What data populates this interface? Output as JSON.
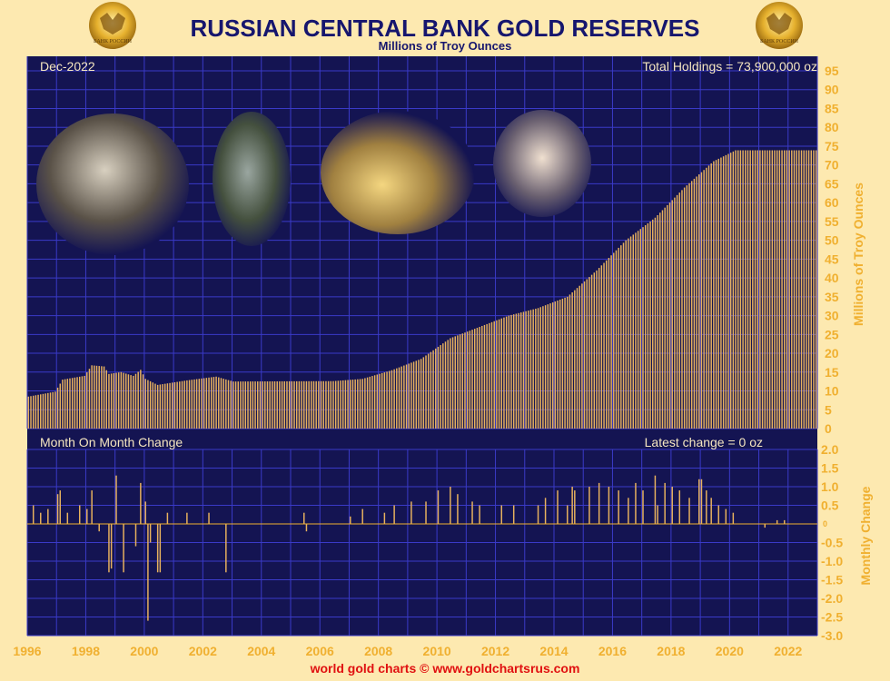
{
  "header": {
    "title": "RUSSIAN CENTRAL BANK GOLD RESERVES",
    "subtitle": "Millions of Troy Ounces",
    "emblem_text": "БАНК РОССИИ"
  },
  "footer": {
    "credit": "world gold charts © www.goldchartsrus.com"
  },
  "colors": {
    "plot_bg": "#141452",
    "grid": "#3a3ac8",
    "bar": "#e8b25e",
    "axis_text": "#f0b030",
    "title_text": "#16166e",
    "footer_text": "#e01010",
    "header_bg": "#fde9b0"
  },
  "photos": [
    "Putin and officials examining gold bars",
    "Putin holding a gold bar",
    "Officials with a gold bar",
    "Medvedev holding a gold coin"
  ],
  "chart_data": [
    {
      "type": "bar",
      "panel": "holdings",
      "date_label": "Dec-2022",
      "annotation": "Total Holdings = 73,900,000 oz",
      "ylabel": "Millions of Troy Ounces",
      "ylim": [
        0,
        95
      ],
      "yticks": [
        0,
        5,
        10,
        15,
        20,
        25,
        30,
        35,
        40,
        45,
        50,
        55,
        60,
        65,
        70,
        75,
        80,
        85,
        90,
        95
      ],
      "x_start": "1996-01",
      "x_end": "2022-12",
      "frequency": "monthly",
      "anchors": [
        [
          "1996-01",
          8.5
        ],
        [
          "1996-12",
          9.8
        ],
        [
          "1997-03",
          13.0
        ],
        [
          "1997-12",
          14.0
        ],
        [
          "1998-03",
          16.8
        ],
        [
          "1998-08",
          16.5
        ],
        [
          "1998-10",
          14.5
        ],
        [
          "1999-03",
          15.0
        ],
        [
          "1999-08",
          14.0
        ],
        [
          "1999-11",
          15.6
        ],
        [
          "2000-01",
          13.2
        ],
        [
          "2000-06",
          11.6
        ],
        [
          "2001-06",
          12.8
        ],
        [
          "2002-06",
          13.8
        ],
        [
          "2003-01",
          12.5
        ],
        [
          "2006-06",
          12.6
        ],
        [
          "2007-06",
          13.2
        ],
        [
          "2008-06",
          15.5
        ],
        [
          "2009-06",
          18.5
        ],
        [
          "2010-06",
          24.0
        ],
        [
          "2011-06",
          27.0
        ],
        [
          "2012-06",
          30.0
        ],
        [
          "2013-06",
          32.0
        ],
        [
          "2014-06",
          35.0
        ],
        [
          "2015-06",
          42.0
        ],
        [
          "2016-06",
          50.0
        ],
        [
          "2017-06",
          56.0
        ],
        [
          "2018-06",
          64.0
        ],
        [
          "2019-06",
          71.0
        ],
        [
          "2020-03",
          73.9
        ],
        [
          "2022-12",
          73.9
        ]
      ]
    },
    {
      "type": "bar",
      "panel": "monthly_change",
      "title": "Month On Month Change",
      "annotation": "Latest change = 0 oz",
      "ylabel": "Monthly Change",
      "ylim": [
        -3.0,
        2.0
      ],
      "yticks": [
        -3.0,
        -2.5,
        -2.0,
        -1.5,
        -1.0,
        -0.5,
        0,
        0.5,
        1.0,
        1.5,
        2.0
      ],
      "x_start": "1996-01",
      "x_end": "2022-12",
      "points": [
        [
          "1996-03",
          0.5
        ],
        [
          "1996-06",
          0.3
        ],
        [
          "1996-09",
          0.4
        ],
        [
          "1997-01",
          0.8
        ],
        [
          "1997-02",
          0.9
        ],
        [
          "1997-05",
          0.3
        ],
        [
          "1997-10",
          0.5
        ],
        [
          "1998-01",
          0.4
        ],
        [
          "1998-03",
          0.9
        ],
        [
          "1998-06",
          -0.2
        ],
        [
          "1998-10",
          -1.3
        ],
        [
          "1998-11",
          -1.2
        ],
        [
          "1999-01",
          1.3
        ],
        [
          "1999-04",
          -1.3
        ],
        [
          "1999-09",
          -0.6
        ],
        [
          "1999-11",
          1.1
        ],
        [
          "2000-01",
          0.6
        ],
        [
          "2000-02",
          -2.6
        ],
        [
          "2000-03",
          -0.5
        ],
        [
          "2000-06",
          -1.3
        ],
        [
          "2000-07",
          -1.3
        ],
        [
          "2000-10",
          0.3
        ],
        [
          "2001-06",
          0.3
        ],
        [
          "2002-03",
          0.3
        ],
        [
          "2002-10",
          -1.3
        ],
        [
          "2005-06",
          0.3
        ],
        [
          "2005-07",
          -0.2
        ],
        [
          "2007-01",
          0.2
        ],
        [
          "2007-06",
          0.4
        ],
        [
          "2008-03",
          0.3
        ],
        [
          "2008-07",
          0.5
        ],
        [
          "2009-02",
          0.6
        ],
        [
          "2009-08",
          0.6
        ],
        [
          "2010-01",
          0.9
        ],
        [
          "2010-06",
          1.0
        ],
        [
          "2010-09",
          0.8
        ],
        [
          "2011-03",
          0.6
        ],
        [
          "2011-06",
          0.5
        ],
        [
          "2012-03",
          0.5
        ],
        [
          "2012-08",
          0.5
        ],
        [
          "2013-06",
          0.5
        ],
        [
          "2013-09",
          0.7
        ],
        [
          "2014-02",
          0.9
        ],
        [
          "2014-06",
          0.5
        ],
        [
          "2014-08",
          1.0
        ],
        [
          "2014-09",
          0.9
        ],
        [
          "2015-03",
          1.0
        ],
        [
          "2015-07",
          1.1
        ],
        [
          "2015-11",
          1.0
        ],
        [
          "2016-03",
          0.9
        ],
        [
          "2016-07",
          0.7
        ],
        [
          "2016-10",
          1.1
        ],
        [
          "2017-01",
          0.9
        ],
        [
          "2017-06",
          1.3
        ],
        [
          "2017-07",
          0.5
        ],
        [
          "2017-10",
          1.1
        ],
        [
          "2018-01",
          1.0
        ],
        [
          "2018-04",
          0.9
        ],
        [
          "2018-08",
          0.7
        ],
        [
          "2018-12",
          1.2
        ],
        [
          "2019-01",
          1.2
        ],
        [
          "2019-03",
          0.9
        ],
        [
          "2019-05",
          0.7
        ],
        [
          "2019-08",
          0.5
        ],
        [
          "2019-11",
          0.4
        ],
        [
          "2020-02",
          0.3
        ],
        [
          "2021-03",
          -0.1
        ],
        [
          "2021-08",
          0.1
        ],
        [
          "2021-11",
          0.1
        ]
      ]
    }
  ],
  "x_axis": {
    "tick_labels": [
      "1996",
      "1998",
      "2000",
      "2002",
      "2004",
      "2006",
      "2008",
      "2010",
      "2012",
      "2014",
      "2016",
      "2018",
      "2020",
      "2022"
    ]
  }
}
